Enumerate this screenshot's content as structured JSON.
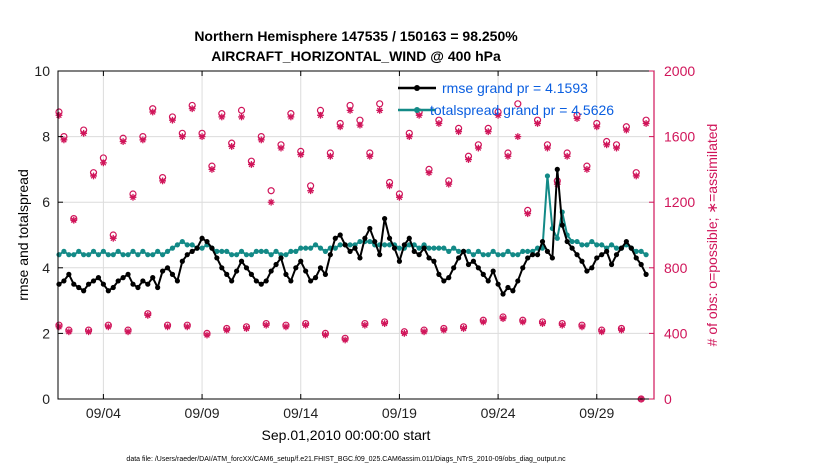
{
  "chart_data": {
    "type": "line",
    "title": "Northern Hemisphere 147535 / 150163 = 98.250%",
    "subtitle": "AIRCRAFT_HORIZONTAL_WIND @ 400 hPa",
    "xlabel": "Sep.01,2010 00:00:00 start",
    "ylabel": "rmse and totalspread",
    "y2label": "# of obs: o=possible; ∗=assimilated",
    "footer": "data file: /Users/raeder/DAI/ATM_forcXX/CAM6_setup/f.e21.FHIST_BGC.f09_025.CAM6assim.011/Diags_NTrS_2010-09/obs_diag_output.nc",
    "x_tick_labels": [
      "09/04",
      "09/09",
      "09/14",
      "09/19",
      "09/24",
      "09/29"
    ],
    "x_tick_values": [
      4,
      9,
      14,
      19,
      24,
      29
    ],
    "xlim": [
      1.7,
      31.9
    ],
    "ylim": [
      0,
      10
    ],
    "y_ticks": [
      0,
      2,
      4,
      6,
      8,
      10
    ],
    "y2lim": [
      0,
      2000
    ],
    "y2_ticks": [
      0,
      400,
      800,
      1200,
      1600,
      2000
    ],
    "grid": true,
    "legend_position": "top-right",
    "colors": {
      "rmse": "#000000",
      "totalspread": "#138a87",
      "obs": "#d0155a",
      "legend_text": "#0a5ee0"
    },
    "series": [
      {
        "name": "rmse grand pr = 4.1593",
        "axis": "left",
        "x": [
          1.75,
          2.0,
          2.25,
          2.5,
          2.75,
          3.0,
          3.25,
          3.5,
          3.75,
          4.0,
          4.25,
          4.5,
          4.75,
          5.0,
          5.25,
          5.5,
          5.75,
          6.0,
          6.25,
          6.5,
          6.75,
          7.0,
          7.25,
          7.5,
          7.75,
          8.0,
          8.25,
          8.5,
          8.75,
          9.0,
          9.25,
          9.5,
          9.75,
          10.0,
          10.25,
          10.5,
          10.75,
          11.0,
          11.25,
          11.5,
          11.75,
          12.0,
          12.25,
          12.5,
          12.75,
          13.0,
          13.25,
          13.5,
          13.75,
          14.0,
          14.25,
          14.5,
          14.75,
          15.0,
          15.25,
          15.5,
          15.75,
          16.0,
          16.25,
          16.5,
          16.75,
          17.0,
          17.25,
          17.5,
          17.75,
          18.0,
          18.25,
          18.5,
          18.75,
          19.0,
          19.25,
          19.5,
          19.75,
          20.0,
          20.25,
          20.5,
          20.75,
          21.0,
          21.25,
          21.5,
          21.75,
          22.0,
          22.25,
          22.5,
          22.75,
          23.0,
          23.25,
          23.5,
          23.75,
          24.0,
          24.25,
          24.5,
          24.75,
          25.0,
          25.25,
          25.5,
          25.75,
          26.0,
          26.25,
          26.5,
          26.75,
          27.0,
          27.25,
          27.5,
          27.75,
          28.0,
          28.25,
          28.5,
          28.75,
          29.0,
          29.25,
          29.5,
          29.75,
          30.0,
          30.25,
          30.5,
          30.75,
          31.0,
          31.25,
          31.5
        ],
        "values": [
          3.5,
          3.6,
          3.8,
          3.5,
          3.4,
          3.3,
          3.5,
          3.6,
          3.7,
          3.5,
          3.3,
          3.4,
          3.6,
          3.7,
          3.8,
          3.5,
          3.4,
          3.6,
          3.5,
          3.7,
          3.4,
          3.9,
          4.0,
          3.8,
          3.6,
          4.2,
          4.4,
          4.5,
          4.6,
          4.9,
          4.8,
          4.6,
          4.3,
          4.0,
          3.8,
          3.6,
          3.9,
          4.2,
          4.0,
          3.8,
          3.6,
          3.5,
          3.6,
          3.9,
          4.1,
          4.3,
          3.8,
          3.6,
          4.0,
          4.2,
          3.9,
          3.6,
          3.7,
          4.0,
          3.8,
          4.4,
          4.9,
          5.0,
          4.7,
          4.5,
          4.6,
          4.3,
          4.9,
          5.2,
          4.8,
          4.4,
          5.5,
          4.9,
          4.6,
          4.2,
          4.7,
          4.9,
          4.5,
          4.4,
          4.6,
          4.3,
          4.2,
          3.8,
          3.6,
          3.7,
          4.0,
          4.3,
          4.5,
          4.1,
          4.2,
          4.0,
          3.8,
          3.6,
          3.9,
          3.5,
          3.2,
          3.4,
          3.3,
          3.6,
          4.0,
          4.3,
          4.4,
          4.4,
          4.8,
          4.5,
          4.3,
          7.0,
          5.3,
          4.8,
          4.6,
          4.4,
          4.2,
          3.9,
          4.0,
          4.3,
          4.4,
          4.5,
          4.1,
          4.4,
          4.6,
          4.8,
          4.6,
          4.3,
          4.1,
          3.8
        ],
        "marker": "filled-circle"
      },
      {
        "name": "totalspread grand pr = 4.5626",
        "axis": "left",
        "x": [
          1.75,
          2.0,
          2.25,
          2.5,
          2.75,
          3.0,
          3.25,
          3.5,
          3.75,
          4.0,
          4.25,
          4.5,
          4.75,
          5.0,
          5.25,
          5.5,
          5.75,
          6.0,
          6.25,
          6.5,
          6.75,
          7.0,
          7.25,
          7.5,
          7.75,
          8.0,
          8.25,
          8.5,
          8.75,
          9.0,
          9.25,
          9.5,
          9.75,
          10.0,
          10.25,
          10.5,
          10.75,
          11.0,
          11.25,
          11.5,
          11.75,
          12.0,
          12.25,
          12.5,
          12.75,
          13.0,
          13.25,
          13.5,
          13.75,
          14.0,
          14.25,
          14.5,
          14.75,
          15.0,
          15.25,
          15.5,
          15.75,
          16.0,
          16.25,
          16.5,
          16.75,
          17.0,
          17.25,
          17.5,
          17.75,
          18.0,
          18.25,
          18.5,
          18.75,
          19.0,
          19.25,
          19.5,
          19.75,
          20.0,
          20.25,
          20.5,
          20.75,
          21.0,
          21.25,
          21.5,
          21.75,
          22.0,
          22.25,
          22.5,
          22.75,
          23.0,
          23.25,
          23.5,
          23.75,
          24.0,
          24.25,
          24.5,
          24.75,
          25.0,
          25.25,
          25.5,
          25.75,
          26.0,
          26.25,
          26.5,
          26.75,
          27.0,
          27.25,
          27.5,
          27.75,
          28.0,
          28.25,
          28.5,
          28.75,
          29.0,
          29.25,
          29.5,
          29.75,
          30.0,
          30.25,
          30.5,
          30.75,
          31.0,
          31.25,
          31.5
        ],
        "values": [
          4.4,
          4.5,
          4.4,
          4.4,
          4.5,
          4.4,
          4.4,
          4.5,
          4.4,
          4.5,
          4.4,
          4.4,
          4.5,
          4.4,
          4.4,
          4.5,
          4.4,
          4.5,
          4.4,
          4.4,
          4.5,
          4.4,
          4.5,
          4.6,
          4.7,
          4.8,
          4.7,
          4.7,
          4.6,
          4.6,
          4.7,
          4.6,
          4.5,
          4.5,
          4.5,
          4.4,
          4.4,
          4.5,
          4.4,
          4.4,
          4.5,
          4.5,
          4.5,
          4.4,
          4.5,
          4.4,
          4.4,
          4.5,
          4.5,
          4.6,
          4.6,
          4.6,
          4.7,
          4.6,
          4.5,
          4.6,
          4.6,
          4.7,
          4.7,
          4.7,
          4.7,
          4.8,
          4.8,
          4.8,
          4.7,
          4.7,
          4.7,
          4.7,
          4.7,
          4.6,
          4.6,
          4.7,
          4.7,
          4.6,
          4.7,
          4.6,
          4.6,
          4.6,
          4.6,
          4.5,
          4.6,
          4.5,
          4.5,
          4.5,
          4.4,
          4.5,
          4.4,
          4.4,
          4.5,
          4.4,
          4.4,
          4.5,
          4.4,
          4.4,
          4.5,
          4.5,
          4.5,
          4.6,
          4.6,
          6.8,
          5.2,
          4.9,
          5.7,
          5.0,
          4.8,
          4.8,
          4.7,
          4.7,
          4.8,
          4.7,
          4.7,
          4.6,
          4.7,
          4.6,
          4.6,
          4.7,
          4.6,
          4.5,
          4.5,
          4.4
        ],
        "marker": "filled-circle"
      },
      {
        "name": "obs possible",
        "axis": "right",
        "marker": "open-circle",
        "x": [
          1.75,
          2.0,
          2.5,
          3.0,
          3.5,
          4.0,
          4.5,
          5.0,
          5.5,
          6.0,
          6.5,
          7.0,
          7.5,
          8.0,
          8.5,
          9.0,
          9.5,
          10.0,
          10.5,
          11.0,
          11.5,
          12.0,
          12.5,
          13.0,
          13.5,
          14.0,
          14.5,
          15.0,
          15.5,
          16.0,
          16.5,
          17.0,
          17.5,
          18.0,
          18.5,
          19.0,
          19.5,
          20.0,
          20.5,
          21.0,
          21.5,
          22.0,
          22.5,
          23.0,
          23.5,
          24.0,
          24.5,
          25.0,
          25.5,
          26.0,
          26.5,
          27.0,
          27.5,
          28.0,
          28.5,
          29.0,
          29.5,
          30.0,
          30.5,
          31.0,
          31.5,
          1.75,
          2.25,
          3.25,
          4.25,
          5.25,
          6.25,
          7.25,
          8.25,
          9.25,
          10.25,
          11.25,
          12.25,
          13.25,
          14.25,
          15.25,
          16.25,
          17.25,
          18.25,
          19.25,
          20.25,
          21.25,
          22.25,
          23.25,
          24.25,
          25.25,
          26.25,
          27.25,
          28.25,
          29.25,
          30.25,
          31.25
        ],
        "values": [
          1750,
          1600,
          1100,
          1640,
          1380,
          1470,
          1000,
          1590,
          1250,
          1600,
          1770,
          1350,
          1720,
          1620,
          1790,
          1620,
          1420,
          1740,
          1560,
          1760,
          1450,
          1600,
          1270,
          1550,
          1740,
          1510,
          1300,
          1760,
          1500,
          1680,
          1790,
          1700,
          1500,
          1800,
          1320,
          1250,
          1620,
          1750,
          1400,
          1700,
          1330,
          1650,
          1480,
          1550,
          1650,
          1750,
          1500,
          1800,
          1150,
          1700,
          1550,
          1330,
          1500,
          1730,
          1420,
          1680,
          1570,
          1550,
          1660,
          1380,
          1700,
          450,
          420,
          420,
          450,
          420,
          520,
          450,
          450,
          400,
          430,
          440,
          460,
          450,
          460,
          400,
          370,
          460,
          470,
          410,
          420,
          430,
          440,
          480,
          500,
          480,
          470,
          460,
          450,
          420,
          430,
          0
        ],
        "values_note": ""
      },
      {
        "name": "obs assimilated",
        "axis": "right",
        "marker": "asterisk",
        "x": [
          1.75,
          2.0,
          2.5,
          3.0,
          3.5,
          4.0,
          4.5,
          5.0,
          5.5,
          6.0,
          6.5,
          7.0,
          7.5,
          8.0,
          8.5,
          9.0,
          9.5,
          10.0,
          10.5,
          11.0,
          11.5,
          12.0,
          12.5,
          13.0,
          13.5,
          14.0,
          14.5,
          15.0,
          15.5,
          16.0,
          16.5,
          17.0,
          17.5,
          18.0,
          18.5,
          19.0,
          19.5,
          20.0,
          20.5,
          21.0,
          21.5,
          22.0,
          22.5,
          23.0,
          23.5,
          24.0,
          24.5,
          25.0,
          25.5,
          26.0,
          26.5,
          27.0,
          27.5,
          28.0,
          28.5,
          29.0,
          29.5,
          30.0,
          30.5,
          31.0,
          31.5,
          1.75,
          2.25,
          3.25,
          4.25,
          5.25,
          6.25,
          7.25,
          8.25,
          9.25,
          10.25,
          11.25,
          12.25,
          13.25,
          14.25,
          15.25,
          16.25,
          17.25,
          18.25,
          19.25,
          20.25,
          21.25,
          22.25,
          23.25,
          24.25,
          25.25,
          26.25,
          27.25,
          28.25,
          29.25,
          30.25,
          31.25
        ],
        "values": [
          1730,
          1580,
          1090,
          1620,
          1360,
          1440,
          980,
          1570,
          1230,
          1580,
          1750,
          1330,
          1700,
          1600,
          1770,
          1600,
          1400,
          1720,
          1540,
          1720,
          1430,
          1580,
          1200,
          1530,
          1720,
          1490,
          1270,
          1730,
          1480,
          1660,
          1760,
          1670,
          1480,
          1760,
          1300,
          1230,
          1600,
          1730,
          1380,
          1680,
          1310,
          1630,
          1460,
          1530,
          1630,
          1730,
          1480,
          1600,
          1130,
          1680,
          1530,
          1310,
          1480,
          1710,
          1400,
          1660,
          1550,
          1530,
          1640,
          1360,
          1680,
          440,
          410,
          410,
          440,
          410,
          510,
          440,
          440,
          390,
          420,
          430,
          450,
          440,
          450,
          390,
          360,
          450,
          460,
          400,
          410,
          420,
          430,
          470,
          490,
          470,
          460,
          450,
          440,
          410,
          420,
          0
        ]
      }
    ]
  }
}
